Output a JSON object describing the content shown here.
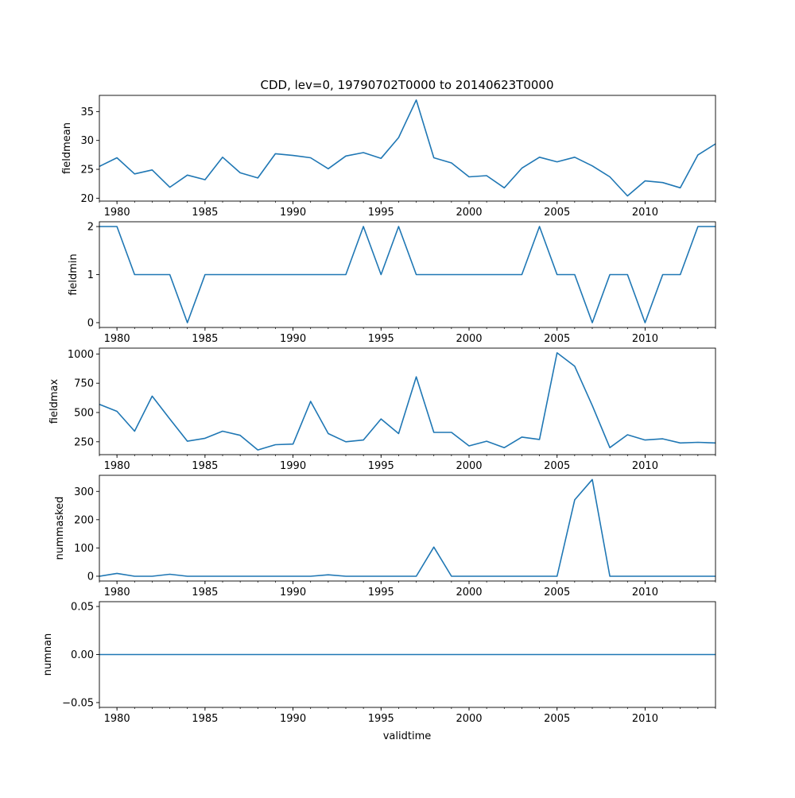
{
  "figure": {
    "title": "CDD, lev=0, 19790702T0000 to 20140623T0000",
    "xlabel": "validtime"
  },
  "x_ticks": [
    "1980",
    "1985",
    "1990",
    "1995",
    "2000",
    "2005",
    "2010"
  ],
  "line_color": "#1f77b4",
  "chart_data": [
    {
      "type": "line",
      "ylabel": "fieldmean",
      "x": [
        1979,
        1980,
        1981,
        1982,
        1983,
        1984,
        1985,
        1986,
        1987,
        1988,
        1989,
        1990,
        1991,
        1992,
        1993,
        1994,
        1995,
        1996,
        1997,
        1998,
        1999,
        2000,
        2001,
        2002,
        2003,
        2004,
        2005,
        2006,
        2007,
        2008,
        2009,
        2010,
        2011,
        2012,
        2013,
        2014
      ],
      "values": [
        25.5,
        27.0,
        24.2,
        24.9,
        21.9,
        24.0,
        23.2,
        27.1,
        24.4,
        23.5,
        27.7,
        27.4,
        27.0,
        25.1,
        27.3,
        27.9,
        26.9,
        30.5,
        37.0,
        27.0,
        26.1,
        23.7,
        23.9,
        21.8,
        25.2,
        27.1,
        26.3,
        27.1,
        25.6,
        23.7,
        20.4,
        23.0,
        22.7,
        21.8,
        27.5,
        29.4
      ],
      "yticks": [
        20,
        25,
        30,
        35
      ],
      "ylim": [
        19.5,
        37.8
      ],
      "xlim": [
        1979,
        2014
      ]
    },
    {
      "type": "line",
      "ylabel": "fieldmin",
      "x": [
        1979,
        1980,
        1981,
        1982,
        1983,
        1984,
        1985,
        1986,
        1987,
        1988,
        1989,
        1990,
        1991,
        1992,
        1993,
        1994,
        1995,
        1996,
        1997,
        1998,
        1999,
        2000,
        2001,
        2002,
        2003,
        2004,
        2005,
        2006,
        2007,
        2008,
        2009,
        2010,
        2011,
        2012,
        2013,
        2014
      ],
      "values": [
        2,
        2,
        1,
        1,
        1,
        0,
        1,
        1,
        1,
        1,
        1,
        1,
        1,
        1,
        1,
        2,
        1,
        2,
        1,
        1,
        1,
        1,
        1,
        1,
        1,
        2,
        1,
        1,
        0,
        1,
        1,
        0,
        1,
        1,
        2,
        2
      ],
      "yticks": [
        0,
        1,
        2
      ],
      "ylim": [
        -0.1,
        2.1
      ],
      "xlim": [
        1979,
        2014
      ]
    },
    {
      "type": "line",
      "ylabel": "fieldmax",
      "x": [
        1979,
        1980,
        1981,
        1982,
        1983,
        1984,
        1985,
        1986,
        1987,
        1988,
        1989,
        1990,
        1991,
        1992,
        1993,
        1994,
        1995,
        1996,
        1997,
        1998,
        1999,
        2000,
        2001,
        2002,
        2003,
        2004,
        2005,
        2006,
        2007,
        2008,
        2009,
        2010,
        2011,
        2012,
        2013,
        2014
      ],
      "values": [
        570,
        510,
        340,
        640,
        445,
        255,
        280,
        340,
        305,
        180,
        225,
        230,
        595,
        320,
        250,
        265,
        445,
        320,
        805,
        330,
        330,
        215,
        255,
        200,
        290,
        270,
        1010,
        895,
        560,
        200,
        310,
        265,
        275,
        240,
        245,
        240
      ],
      "yticks": [
        250,
        500,
        750,
        1000
      ],
      "ylim": [
        140,
        1050
      ],
      "xlim": [
        1979,
        2014
      ]
    },
    {
      "type": "line",
      "ylabel": "nummasked",
      "x": [
        1979,
        1980,
        1981,
        1982,
        1983,
        1984,
        1985,
        1986,
        1987,
        1988,
        1989,
        1990,
        1991,
        1992,
        1993,
        1994,
        1995,
        1996,
        1997,
        1998,
        1999,
        2000,
        2001,
        2002,
        2003,
        2004,
        2005,
        2006,
        2007,
        2008,
        2009,
        2010,
        2011,
        2012,
        2013,
        2014
      ],
      "values": [
        0,
        10,
        0,
        0,
        7,
        0,
        0,
        0,
        0,
        0,
        0,
        0,
        0,
        5,
        0,
        0,
        0,
        0,
        0,
        103,
        0,
        0,
        0,
        0,
        0,
        0,
        0,
        270,
        342,
        0,
        0,
        0,
        0,
        0,
        0,
        0
      ],
      "yticks": [
        0,
        100,
        200,
        300
      ],
      "ylim": [
        -17,
        357
      ],
      "xlim": [
        1979,
        2014
      ]
    },
    {
      "type": "line",
      "ylabel": "numnan",
      "x": [
        1979,
        1980,
        1981,
        1982,
        1983,
        1984,
        1985,
        1986,
        1987,
        1988,
        1989,
        1990,
        1991,
        1992,
        1993,
        1994,
        1995,
        1996,
        1997,
        1998,
        1999,
        2000,
        2001,
        2002,
        2003,
        2004,
        2005,
        2006,
        2007,
        2008,
        2009,
        2010,
        2011,
        2012,
        2013,
        2014
      ],
      "values": [
        0,
        0,
        0,
        0,
        0,
        0,
        0,
        0,
        0,
        0,
        0,
        0,
        0,
        0,
        0,
        0,
        0,
        0,
        0,
        0,
        0,
        0,
        0,
        0,
        0,
        0,
        0,
        0,
        0,
        0,
        0,
        0,
        0,
        0,
        0,
        0
      ],
      "yticks": [
        -0.05,
        0.0,
        0.05
      ],
      "ytick_labels": [
        "−0.05",
        "0.00",
        "0.05"
      ],
      "ylim": [
        -0.055,
        0.055
      ],
      "xlim": [
        1979,
        2014
      ]
    }
  ]
}
